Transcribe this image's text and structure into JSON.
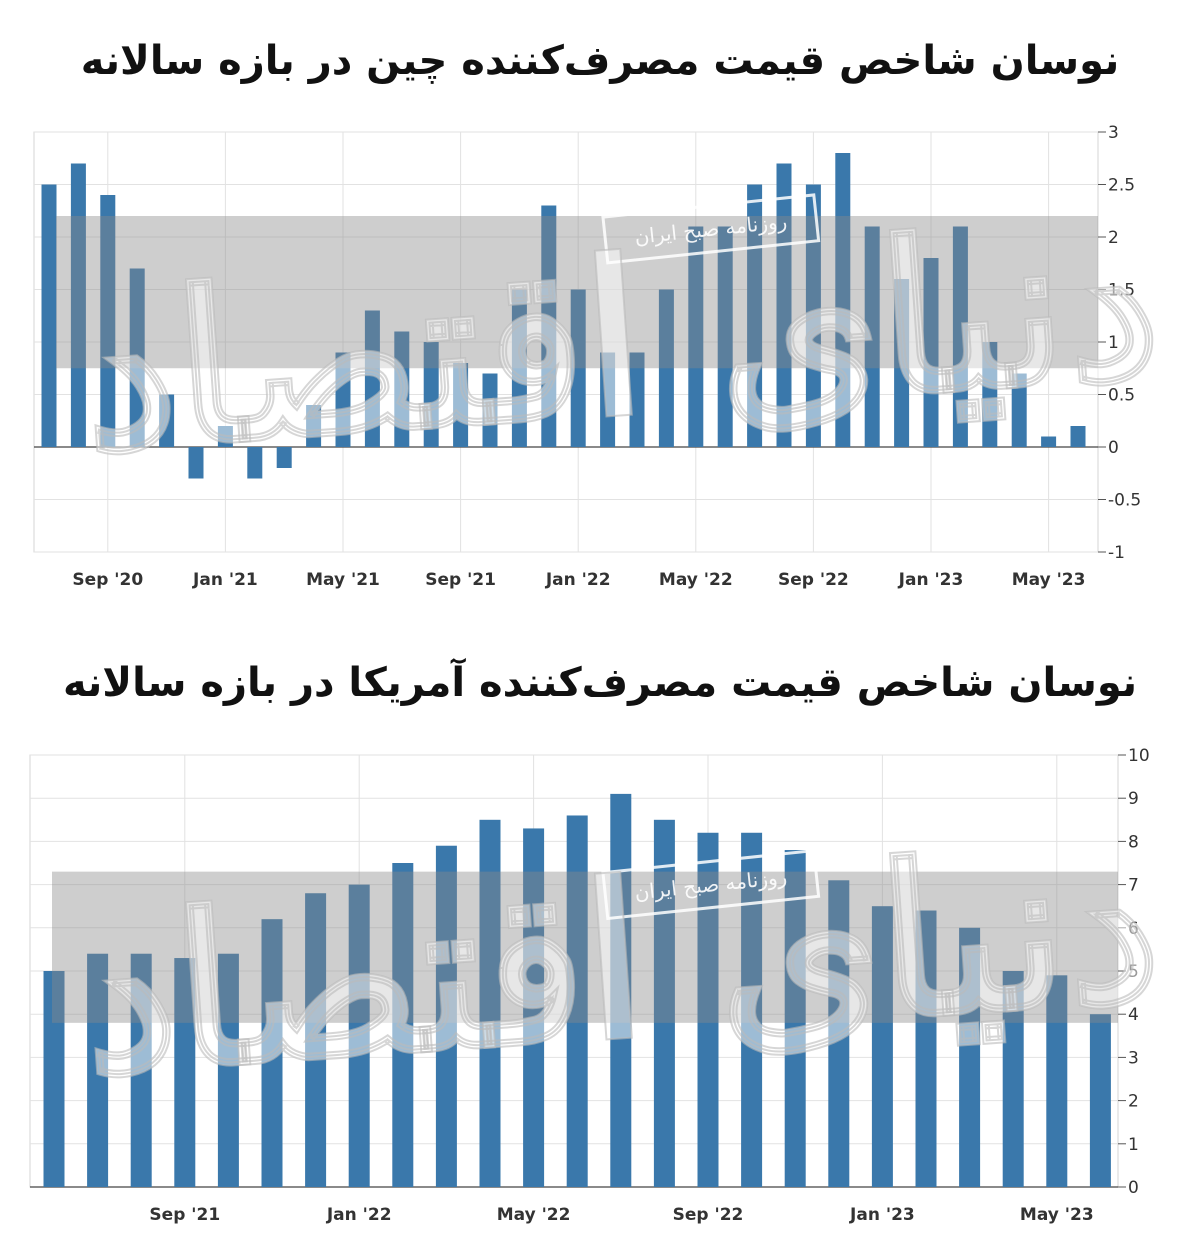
{
  "charts": [
    {
      "title": "نوسان شاخص قیمت مصرف‌کننده چین در بازه سالانه",
      "chart_data": {
        "type": "bar",
        "title": "نوسان شاخص قیمت مصرف‌کننده چین در بازه سالانه",
        "xlabel": "",
        "ylabel": "",
        "ylim": [
          -1,
          3
        ],
        "yticks": [
          "3",
          "2.5",
          "2",
          "1.5",
          "1",
          "0.5",
          "0",
          "-0.5",
          "-1"
        ],
        "x_tick_labels": [
          "Sep '20",
          "Jan '21",
          "May '21",
          "Sep '21",
          "Jan '22",
          "May '22",
          "Sep '22",
          "Jan '23",
          "May '23"
        ],
        "categories": [
          "Jul '20",
          "Aug '20",
          "Sep '20",
          "Oct '20",
          "Nov '20",
          "Dec '20",
          "Jan '21",
          "Feb '21",
          "Mar '21",
          "Apr '21",
          "May '21",
          "Jun '21",
          "Jul '21",
          "Aug '21",
          "Sep '21",
          "Oct '21",
          "Nov '21",
          "Dec '21",
          "Jan '22",
          "Feb '22",
          "Mar '22",
          "Apr '22",
          "May '22",
          "Jun '22",
          "Jul '22",
          "Aug '22",
          "Sep '22",
          "Oct '22",
          "Nov '22",
          "Dec '22",
          "Jan '23",
          "Feb '23",
          "Mar '23",
          "Apr '23",
          "May '23",
          "Jun '23"
        ],
        "values": [
          2.5,
          2.7,
          2.4,
          1.7,
          0.5,
          -0.3,
          0.2,
          -0.3,
          -0.2,
          0.4,
          0.9,
          1.3,
          1.1,
          1.0,
          0.8,
          0.7,
          1.5,
          2.3,
          1.5,
          0.9,
          0.9,
          1.5,
          2.1,
          2.1,
          2.5,
          2.7,
          2.5,
          2.8,
          2.1,
          1.6,
          1.8,
          2.1,
          1.0,
          0.7,
          0.1,
          0.2
        ],
        "grid": true,
        "color": "#3a78ab"
      }
    },
    {
      "title": "نوسان شاخص قیمت مصرف‌کننده آمریکا در بازه سالانه",
      "chart_data": {
        "type": "bar",
        "title": "نوسان شاخص قیمت مصرف‌کننده آمریکا در بازه سالانه",
        "xlabel": "",
        "ylabel": "",
        "ylim": [
          0,
          10
        ],
        "yticks": [
          "10",
          "9",
          "8",
          "7",
          "6",
          "5",
          "4",
          "3",
          "2",
          "1",
          "0"
        ],
        "x_tick_labels": [
          "Sep '21",
          "Jan '22",
          "May '22",
          "Sep '22",
          "Jan '23",
          "May '23"
        ],
        "categories": [
          "Jun '21",
          "Jul '21",
          "Aug '21",
          "Sep '21",
          "Oct '21",
          "Nov '21",
          "Dec '21",
          "Jan '22",
          "Feb '22",
          "Mar '22",
          "Apr '22",
          "May '22",
          "Jun '22",
          "Jul '22",
          "Aug '22",
          "Sep '22",
          "Oct '22",
          "Nov '22",
          "Dec '22",
          "Jan '23",
          "Feb '23",
          "Mar '23",
          "Apr '23",
          "May '23",
          "Jun '23"
        ],
        "values": [
          5.0,
          5.4,
          5.4,
          5.3,
          5.4,
          6.2,
          6.8,
          7.0,
          7.5,
          7.9,
          8.5,
          8.3,
          8.6,
          9.1,
          8.5,
          8.2,
          8.2,
          7.8,
          7.1,
          6.5,
          6.4,
          6.0,
          5.0,
          4.9,
          4.0
        ],
        "grid": true,
        "color": "#3a78ab"
      }
    }
  ],
  "watermark": {
    "logo_text": "دنیای اقتصاد",
    "stamp_text": "روزنامه صبح ایران"
  }
}
